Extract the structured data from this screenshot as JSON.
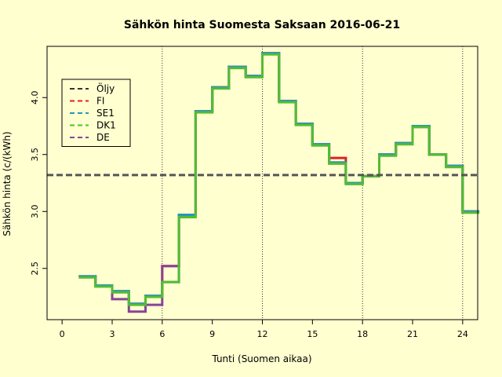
{
  "chart_data": {
    "type": "line",
    "title": "Sähkön hinta Suomesta Saksaan 2016-06-21",
    "xlabel": "Tunti (Suomen aikaa)",
    "ylabel": "Sähkön hinta (c/(kWh)",
    "xlim": [
      -0.9,
      24.9
    ],
    "ylim": [
      2.05,
      4.45
    ],
    "xticks": [
      0,
      3,
      6,
      9,
      12,
      15,
      18,
      21,
      24
    ],
    "yticks": [
      2.5,
      3.0,
      3.5,
      4.0
    ],
    "vlines": [
      6,
      12,
      18,
      24
    ],
    "hline": {
      "series": "Öljy",
      "y": 3.32
    },
    "legend_position": "top-left",
    "step_x": [
      1,
      2,
      3,
      4,
      5,
      6,
      7,
      8,
      9,
      10,
      11,
      12,
      13,
      14,
      15,
      16,
      17,
      18,
      19,
      20,
      21,
      22,
      23,
      24,
      25
    ],
    "series": [
      {
        "name": "Öljy",
        "color": "#333333",
        "linestyle": "dashed",
        "values": []
      },
      {
        "name": "FI",
        "color": "#DD2222",
        "linestyle": "solid",
        "values": [
          2.43,
          2.35,
          2.3,
          2.19,
          2.26,
          2.52,
          2.97,
          3.88,
          4.09,
          4.27,
          4.19,
          4.39,
          3.97,
          3.77,
          3.59,
          3.47,
          3.25,
          3.31,
          3.5,
          3.6,
          3.75,
          3.5,
          3.4,
          3.0
        ]
      },
      {
        "name": "SE1",
        "color": "#2299BB",
        "linestyle": "solid",
        "values": [
          2.43,
          2.35,
          2.3,
          2.19,
          2.26,
          2.38,
          2.97,
          3.88,
          4.09,
          4.27,
          4.19,
          4.39,
          3.97,
          3.77,
          3.59,
          3.43,
          3.25,
          3.31,
          3.5,
          3.6,
          3.75,
          3.5,
          3.4,
          3.0
        ]
      },
      {
        "name": "DK1",
        "color": "#55BB33",
        "linestyle": "solid",
        "values": [
          2.42,
          2.34,
          2.29,
          2.18,
          2.25,
          2.38,
          2.95,
          3.87,
          4.08,
          4.26,
          4.18,
          4.38,
          3.96,
          3.76,
          3.58,
          3.42,
          3.24,
          3.31,
          3.49,
          3.59,
          3.74,
          3.5,
          3.39,
          2.99
        ]
      },
      {
        "name": "DE",
        "color": "#884499",
        "linestyle": "solid",
        "values": [
          2.43,
          2.35,
          2.23,
          2.12,
          2.18,
          2.52,
          2.97,
          3.88,
          4.09,
          4.27,
          4.19,
          4.39,
          3.97,
          3.77,
          3.59,
          3.43,
          3.25,
          3.31,
          3.5,
          3.6,
          3.75,
          3.5,
          3.4,
          3.0
        ]
      }
    ]
  }
}
